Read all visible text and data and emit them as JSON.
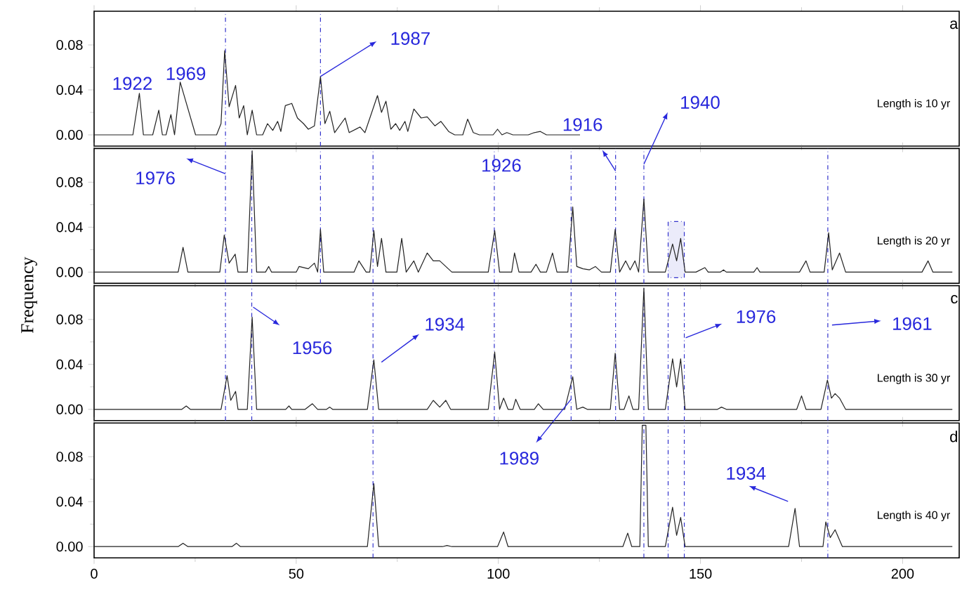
{
  "chart_data": [
    {
      "type": "line",
      "xlim": [
        0,
        214
      ],
      "ylim": [
        -0.01,
        0.11
      ],
      "xticks": [
        0,
        50,
        100,
        150,
        200
      ],
      "yticks": [
        {
          "value": 0,
          "label": "0.00"
        },
        {
          "value": 0.04,
          "label": "0.04"
        },
        {
          "value": 0.08,
          "label": "0.08"
        }
      ],
      "tick_labels": "y",
      "color": "#222222",
      "x": [
        0,
        9.6,
        11.2,
        12.2,
        14.5,
        16.0,
        16.9,
        17.8,
        19.0,
        19.9,
        21.3,
        25.1,
        30.3,
        31.4,
        32.3,
        33.4,
        35.0,
        35.9,
        37.0,
        37.9,
        39.1,
        40.2,
        41.7,
        42.9,
        44.2,
        45.4,
        46.2,
        47.3,
        48.9,
        50.3,
        51.8,
        53.0,
        54.5,
        56.0,
        57.1,
        58.3,
        59.5,
        62.1,
        63.1,
        65.8,
        67.0,
        70.1,
        71.1,
        72.2,
        73.4,
        74.6,
        75.6,
        76.9,
        77.6,
        79.1,
        80.9,
        82.4,
        84.3,
        85.8,
        87.7,
        89.2,
        91.2,
        92.4,
        93.8,
        95.3,
        98.7,
        99.8,
        100.9,
        102.1,
        103.6,
        107.4,
        108.9,
        110.4,
        111.9,
        120.2
      ],
      "values": [
        0,
        0,
        0.037,
        0,
        0,
        0.022,
        0,
        0,
        0.018,
        0,
        0.047,
        0,
        0,
        0.01,
        0.075,
        0.025,
        0.044,
        0.015,
        0.026,
        0,
        0.022,
        0,
        0,
        0.01,
        0.004,
        0.012,
        0.003,
        0.026,
        0.028,
        0.015,
        0.01,
        0.005,
        0.008,
        0.052,
        0.01,
        0.021,
        0.002,
        0.015,
        0.002,
        0.007,
        0.002,
        0.035,
        0.02,
        0.03,
        0.005,
        0.01,
        0.004,
        0.012,
        0.003,
        0.023,
        0.015,
        0.016,
        0.008,
        0.012,
        0.003,
        0,
        0,
        0.014,
        0.002,
        0,
        0,
        0.005,
        0,
        0.002,
        0,
        0,
        0.002,
        0.003,
        0,
        0
      ],
      "ref_lines": [
        {
          "axis": "x",
          "value": 32.5,
          "color": "#3333cc",
          "line_style": "dashdot"
        },
        {
          "axis": "x",
          "value": 56,
          "color": "#3333cc",
          "line_style": "dashdot"
        }
      ],
      "annotations": [
        {
          "text": "1922",
          "x": 11.2,
          "y": 0.037
        },
        {
          "text": "1969",
          "x": 21.3,
          "y": 0.047
        },
        {
          "text": "1987",
          "x": 56,
          "y": 0.052
        },
        "Length is 10 yr",
        "a"
      ]
    },
    {
      "type": "line",
      "xlim": [
        0,
        214
      ],
      "ylim": [
        -0.01,
        0.11
      ],
      "xticks": [
        0,
        50,
        100,
        150,
        200
      ],
      "yticks": [
        {
          "value": 0,
          "label": "0.00"
        },
        {
          "value": 0.04,
          "label": "0.04"
        },
        {
          "value": 0.08,
          "label": "0.08"
        }
      ],
      "tick_labels": "y",
      "color": "#222222",
      "x": [
        0,
        20.8,
        22.0,
        23.2,
        31.1,
        32.2,
        33.4,
        34.9,
        35.6,
        37.9,
        39.1,
        40.2,
        42.4,
        43.2,
        43.9,
        50.0,
        50.7,
        53.0,
        54.5,
        55.3,
        56.0,
        56.8,
        64.3,
        65.5,
        67.3,
        68.2,
        69.2,
        70.1,
        71.1,
        72.2,
        74.9,
        76.1,
        77.2,
        79.1,
        80.2,
        82.4,
        83.9,
        85.5,
        88.5,
        97.5,
        99.1,
        100.3,
        103.3,
        104.0,
        105.1,
        108.1,
        109.3,
        110.4,
        111.9,
        113.4,
        114.5,
        117.2,
        118.4,
        119.4,
        120.9,
        122.5,
        124.0,
        125.5,
        127.7,
        128.9,
        130.0,
        131.5,
        132.6,
        133.8,
        134.7,
        136.0,
        137.1,
        141.3,
        143.1,
        144.1,
        145.1,
        146.2,
        148.9,
        151.1,
        151.9,
        154.9,
        155.7,
        156.4,
        163.2,
        164.0,
        164.7,
        174.5,
        176.1,
        177.1,
        180.6,
        181.7,
        182.6,
        184.4,
        185.9,
        204.8,
        206.3,
        207.5,
        212.3
      ],
      "values": [
        0,
        0,
        0.022,
        0,
        0,
        0.033,
        0.008,
        0.016,
        0,
        0,
        0.108,
        0,
        0,
        0.005,
        0,
        0,
        0.005,
        0.003,
        0.008,
        0,
        0.038,
        0,
        0,
        0.01,
        0,
        0,
        0.037,
        0.005,
        0.03,
        0,
        0,
        0.03,
        0,
        0.01,
        0,
        0.017,
        0.01,
        0.01,
        0,
        0,
        0.037,
        0,
        0,
        0.017,
        0,
        0,
        0.007,
        0,
        0,
        0.017,
        0,
        0,
        0.058,
        0.005,
        0.003,
        0.002,
        0.005,
        0,
        0,
        0.038,
        0,
        0.01,
        0.002,
        0.01,
        0,
        0.065,
        0,
        0,
        0.025,
        0.01,
        0.03,
        0,
        0,
        0.004,
        0,
        0,
        0.002,
        0,
        0,
        0.004,
        0,
        0,
        0.01,
        0,
        0,
        0.035,
        0.002,
        0.017,
        0,
        0,
        0.01,
        0,
        0
      ],
      "ref_lines": [
        {
          "axis": "x",
          "value": 32.5,
          "color": "#3333cc",
          "line_style": "dashdot"
        },
        {
          "axis": "x",
          "value": 39,
          "color": "#3333cc",
          "line_style": "dashdot"
        },
        {
          "axis": "x",
          "value": 56,
          "color": "#3333cc",
          "line_style": "dashdot"
        },
        {
          "axis": "x",
          "value": 69,
          "color": "#3333cc",
          "line_style": "dashdot"
        },
        {
          "axis": "x",
          "value": 99,
          "color": "#3333cc",
          "line_style": "dashdot"
        },
        {
          "axis": "x",
          "value": 118,
          "color": "#3333cc",
          "line_style": "dashdot"
        },
        {
          "axis": "x",
          "value": 129,
          "color": "#3333cc",
          "line_style": "dashdot"
        },
        {
          "axis": "x",
          "value": 136,
          "color": "#3333cc",
          "line_style": "dashdot"
        },
        {
          "axis": "x",
          "value": 181.5,
          "color": "#3333cc",
          "line_style": "dashdot"
        }
      ],
      "bands": [
        {
          "axis": "x",
          "from": 142,
          "to": 146,
          "color": "#3333cc"
        }
      ],
      "annotations": [
        {
          "text": "1976",
          "x": 32.5,
          "y": 0.0875
        },
        {
          "text": "1926",
          "x": 99,
          "y": 0.08
        },
        {
          "text": "1916",
          "x": 129,
          "y": 0.09
        },
        {
          "text": "1940",
          "x": 136,
          "y": 0.096
        },
        "Length is 20 yr"
      ]
    },
    {
      "type": "line",
      "xlim": [
        0,
        214
      ],
      "ylim": [
        -0.01,
        0.11
      ],
      "xticks": [
        0,
        50,
        100,
        150,
        200
      ],
      "yticks": [
        {
          "value": 0,
          "label": "0.00"
        },
        {
          "value": 0.04,
          "label": "0.04"
        },
        {
          "value": 0.08,
          "label": "0.08"
        }
      ],
      "tick_labels": "y",
      "ylabel": "Frequency",
      "color": "#222222",
      "x": [
        0,
        21.7,
        22.8,
        23.8,
        31.4,
        32.9,
        33.8,
        35.0,
        35.6,
        37.9,
        39.1,
        40.2,
        47.4,
        48.2,
        48.9,
        52.2,
        54.0,
        55.3,
        57.5,
        58.3,
        59.0,
        67.6,
        69.2,
        70.4,
        82.4,
        83.9,
        85.5,
        87.0,
        88.2,
        97.5,
        99.1,
        100.3,
        101.3,
        102.4,
        103.6,
        104.3,
        105.4,
        108.9,
        109.9,
        111.1,
        116.4,
        118.4,
        119.4,
        120.9,
        122.0,
        127.7,
        128.9,
        130.0,
        131.1,
        132.3,
        133.3,
        134.7,
        136.0,
        137.1,
        141.3,
        143.1,
        144.1,
        145.1,
        146.2,
        154.2,
        155.2,
        156.4,
        173.8,
        175.0,
        176.1,
        179.8,
        181.4,
        182.4,
        183.3,
        184.4,
        185.9,
        212.3
      ],
      "values": [
        0,
        0,
        0.003,
        0,
        0,
        0.03,
        0.008,
        0.016,
        0,
        0,
        0.082,
        0,
        0,
        0.003,
        0,
        0,
        0.005,
        0,
        0,
        0.002,
        0,
        0,
        0.044,
        0,
        0,
        0.008,
        0.002,
        0.008,
        0,
        0,
        0.051,
        0,
        0.01,
        0,
        0,
        0.009,
        0,
        0,
        0.005,
        0,
        0,
        0.029,
        0,
        0.002,
        0,
        0,
        0.05,
        0,
        0,
        0.012,
        0,
        0,
        0.108,
        0,
        0,
        0.045,
        0.02,
        0.045,
        0,
        0,
        0.002,
        0,
        0,
        0.012,
        0,
        0,
        0.026,
        0.01,
        0.014,
        0.01,
        0,
        0
      ],
      "ref_lines": [
        {
          "axis": "x",
          "value": 32.5,
          "color": "#3333cc",
          "line_style": "dashdot"
        },
        {
          "axis": "x",
          "value": 39,
          "color": "#3333cc",
          "line_style": "dashdot"
        },
        {
          "axis": "x",
          "value": 69,
          "color": "#3333cc",
          "line_style": "dashdot"
        },
        {
          "axis": "x",
          "value": 99,
          "color": "#3333cc",
          "line_style": "dashdot"
        },
        {
          "axis": "x",
          "value": 118,
          "color": "#3333cc",
          "line_style": "dashdot"
        },
        {
          "axis": "x",
          "value": 129,
          "color": "#3333cc",
          "line_style": "dashdot"
        },
        {
          "axis": "x",
          "value": 136,
          "color": "#3333cc",
          "line_style": "dashdot"
        },
        {
          "axis": "x",
          "value": 142,
          "color": "#3333cc",
          "line_style": "dashdot"
        },
        {
          "axis": "x",
          "value": 146,
          "color": "#3333cc",
          "line_style": "dashdot"
        },
        {
          "axis": "x",
          "value": 181.5,
          "color": "#3333cc",
          "line_style": "dashdot"
        }
      ],
      "annotations": [
        {
          "text": "1956",
          "x": 39,
          "y": 0.091
        },
        {
          "text": "1934",
          "x": 69,
          "y": 0.042
        },
        {
          "text": "1989",
          "x": 118,
          "y": 0.009
        },
        {
          "text": "1976",
          "x": 146,
          "y": 0.0625
        },
        {
          "text": "1961",
          "x": 181.5,
          "y": 0.075
        },
        "Length is 30 yr",
        "c"
      ]
    },
    {
      "type": "line",
      "xlim": [
        0,
        214
      ],
      "ylim": [
        -0.01,
        0.11
      ],
      "xticks": [
        0,
        50,
        100,
        150,
        200
      ],
      "yticks": [
        {
          "value": 0,
          "label": "0.00"
        },
        {
          "value": 0.04,
          "label": "0.04"
        },
        {
          "value": 0.08,
          "label": "0.08"
        }
      ],
      "color": "#222222",
      "x": [
        0,
        20.8,
        22.0,
        23.2,
        34.1,
        35.2,
        36.2,
        67.6,
        69.2,
        70.4,
        86.2,
        87.3,
        88.5,
        99.8,
        101.3,
        102.4,
        130.8,
        132.0,
        133.0,
        135.0,
        135.6,
        136.5,
        137.1,
        141.3,
        143.1,
        144.1,
        145.1,
        146.2,
        171.8,
        173.4,
        174.5,
        180.3,
        181.0,
        182.1,
        183.3,
        185.1,
        212.3
      ],
      "values": [
        0,
        0,
        0.003,
        0,
        0,
        0.003,
        0,
        0,
        0.056,
        0,
        0,
        0.001,
        0,
        0,
        0.013,
        0,
        0,
        0.012,
        0,
        0,
        0.108,
        0.108,
        0,
        0,
        0.035,
        0.01,
        0.026,
        0,
        0,
        0.034,
        0,
        0,
        0.022,
        0.008,
        0.015,
        0,
        0
      ],
      "ref_lines": [
        {
          "axis": "x",
          "value": 69,
          "color": "#3333cc",
          "line_style": "dashdot"
        },
        {
          "axis": "x",
          "value": 136,
          "color": "#3333cc",
          "line_style": "dashdot"
        },
        {
          "axis": "x",
          "value": 142,
          "color": "#3333cc",
          "line_style": "dashdot"
        },
        {
          "axis": "x",
          "value": 146,
          "color": "#3333cc",
          "line_style": "dashdot"
        },
        {
          "axis": "x",
          "value": 181.5,
          "color": "#3333cc",
          "line_style": "dashdot"
        }
      ],
      "annotations": [
        {
          "text": "1934",
          "x": 173.4,
          "y": 0.034
        },
        "Length is 40 yr",
        "d"
      ]
    }
  ]
}
